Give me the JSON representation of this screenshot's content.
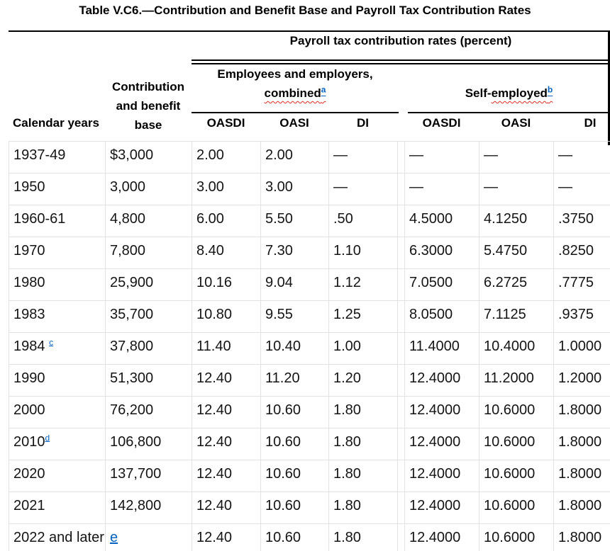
{
  "title": "Table V.C6.—Contribution and Benefit Base and Payroll Tax Contribution Rates",
  "header": {
    "spanner": "Payroll tax contribution rates (percent)",
    "group_employees": {
      "line1": "Employees and employers,",
      "word": "combined",
      "sup": "a"
    },
    "group_self": {
      "prefix": "Self-",
      "word": "employed",
      "sup": "b"
    },
    "col_calendar": "Calendar years",
    "col_base": [
      "Contribution",
      "and benefit",
      "base"
    ],
    "columns": [
      "OASDI",
      "OASI",
      "DI",
      "OASDI",
      "OASI",
      "DI"
    ]
  },
  "table": {
    "rows": [
      {
        "year": "1937-49",
        "base": "$3,000",
        "values": [
          "2.00",
          "2.00",
          "—",
          "—",
          "—",
          "—"
        ]
      },
      {
        "year": "1950",
        "base": "3,000",
        "values": [
          "3.00",
          "3.00",
          "—",
          "—",
          "—",
          "—"
        ]
      },
      {
        "year": "1960-61",
        "base": "4,800",
        "values": [
          "6.00",
          "5.50",
          ".50",
          "4.5000",
          "4.1250",
          ".3750"
        ]
      },
      {
        "year": "1970",
        "base": "7,800",
        "values": [
          "8.40",
          "7.30",
          "1.10",
          "6.3000",
          "5.4750",
          ".8250"
        ]
      },
      {
        "year": "1980",
        "base": "25,900",
        "values": [
          "10.16",
          "9.04",
          "1.12",
          "7.0500",
          "6.2725",
          ".7775"
        ]
      },
      {
        "year": "1983",
        "base": "35,700",
        "values": [
          "10.80",
          "9.55",
          "1.25",
          "8.0500",
          "7.1125",
          ".9375"
        ]
      },
      {
        "year": "1984",
        "year_sup": "c",
        "year_sup_space": true,
        "base": "37,800",
        "values": [
          "11.40",
          "10.40",
          "1.00",
          "11.4000",
          "10.4000",
          "1.0000"
        ]
      },
      {
        "year": "1990",
        "base": "51,300",
        "values": [
          "12.40",
          "11.20",
          "1.20",
          "12.4000",
          "11.2000",
          "1.2000"
        ]
      },
      {
        "year": "2000",
        "base": "76,200",
        "values": [
          "12.40",
          "10.60",
          "1.80",
          "12.4000",
          "10.6000",
          "1.8000"
        ]
      },
      {
        "year": "2010",
        "year_sup": "d",
        "year_sup_space": false,
        "base": "106,800",
        "values": [
          "12.40",
          "10.60",
          "1.80",
          "12.4000",
          "10.6000",
          "1.8000"
        ]
      },
      {
        "year": "2020",
        "base": "137,700",
        "values": [
          "12.40",
          "10.60",
          "1.80",
          "12.4000",
          "10.6000",
          "1.8000"
        ]
      },
      {
        "year": "2021",
        "base": "142,800",
        "values": [
          "12.40",
          "10.60",
          "1.80",
          "12.4000",
          "10.6000",
          "1.8000"
        ]
      },
      {
        "year": "2022 and later",
        "base": "",
        "base_link": "e",
        "values": [
          "12.40",
          "10.60",
          "1.80",
          "12.4000",
          "10.6000",
          "1.8000"
        ]
      }
    ]
  },
  "colors": {
    "link": "#0563C1",
    "squiggle": "#e02b20",
    "grid": "#e2e2e2",
    "rule": "#000000"
  }
}
